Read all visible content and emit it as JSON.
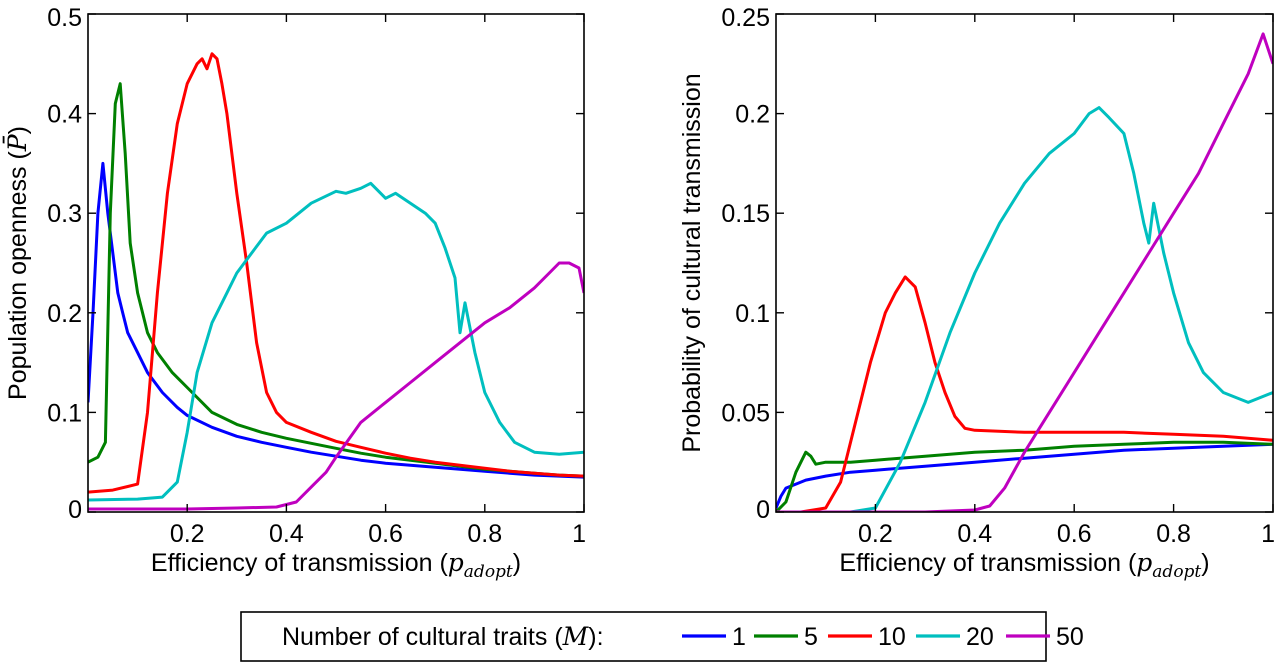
{
  "legend": {
    "title": "Number of cultural traits",
    "title_symbol": "M",
    "placement": "bottom-center",
    "entries": [
      {
        "label": "1",
        "color": "#0000ff"
      },
      {
        "label": "5",
        "color": "#008000"
      },
      {
        "label": "10",
        "color": "#ff0000"
      },
      {
        "label": "20",
        "color": "#00bfbf"
      },
      {
        "label": "50",
        "color": "#bf00bf"
      }
    ]
  },
  "chart_data": [
    {
      "type": "line",
      "xlabel": "Efficiency of transmission",
      "xlabel_symbol": "p",
      "xlabel_subscript": "adopt",
      "ylabel": "Population openness",
      "ylabel_symbol": "P̄",
      "xlim": [
        0,
        1
      ],
      "ylim": [
        0,
        0.5
      ],
      "xticks": [
        "0.2",
        "0.4",
        "0.6",
        "0.8",
        "1"
      ],
      "yticks": [
        "0",
        "0.1",
        "0.2",
        "0.3",
        "0.4",
        "0.5"
      ],
      "xtick_values": [
        0.2,
        0.4,
        0.6,
        0.8,
        1.0
      ],
      "ytick_values": [
        0,
        0.1,
        0.2,
        0.3,
        0.4,
        0.5
      ],
      "grid": false,
      "series": [
        {
          "name": "1",
          "color": "#0000ff",
          "x": [
            0.0,
            0.01,
            0.02,
            0.03,
            0.04,
            0.05,
            0.06,
            0.07,
            0.08,
            0.1,
            0.12,
            0.15,
            0.18,
            0.2,
            0.25,
            0.3,
            0.35,
            0.4,
            0.45,
            0.5,
            0.55,
            0.6,
            0.65,
            0.7,
            0.75,
            0.8,
            0.85,
            0.9,
            0.95,
            1.0
          ],
          "y": [
            0.11,
            0.2,
            0.3,
            0.35,
            0.3,
            0.26,
            0.22,
            0.2,
            0.18,
            0.16,
            0.14,
            0.12,
            0.105,
            0.097,
            0.085,
            0.076,
            0.07,
            0.065,
            0.06,
            0.056,
            0.052,
            0.049,
            0.047,
            0.045,
            0.043,
            0.041,
            0.039,
            0.037,
            0.036,
            0.035
          ]
        },
        {
          "name": "5",
          "color": "#008000",
          "x": [
            0.0,
            0.02,
            0.035,
            0.045,
            0.055,
            0.065,
            0.075,
            0.085,
            0.1,
            0.12,
            0.14,
            0.17,
            0.2,
            0.25,
            0.3,
            0.35,
            0.4,
            0.45,
            0.5,
            0.55,
            0.6,
            0.65,
            0.7,
            0.75,
            0.8,
            0.85,
            0.9,
            0.95,
            1.0
          ],
          "y": [
            0.05,
            0.055,
            0.07,
            0.3,
            0.41,
            0.43,
            0.36,
            0.27,
            0.22,
            0.18,
            0.16,
            0.14,
            0.125,
            0.1,
            0.088,
            0.08,
            0.074,
            0.069,
            0.064,
            0.059,
            0.055,
            0.052,
            0.049,
            0.046,
            0.043,
            0.041,
            0.039,
            0.037,
            0.036
          ]
        },
        {
          "name": "10",
          "color": "#ff0000",
          "x": [
            0.0,
            0.05,
            0.1,
            0.12,
            0.14,
            0.16,
            0.18,
            0.2,
            0.22,
            0.23,
            0.24,
            0.25,
            0.26,
            0.27,
            0.28,
            0.3,
            0.32,
            0.34,
            0.36,
            0.38,
            0.4,
            0.45,
            0.5,
            0.55,
            0.6,
            0.65,
            0.7,
            0.75,
            0.8,
            0.85,
            0.9,
            0.95,
            1.0
          ],
          "y": [
            0.02,
            0.022,
            0.028,
            0.1,
            0.22,
            0.32,
            0.39,
            0.43,
            0.45,
            0.455,
            0.445,
            0.46,
            0.455,
            0.43,
            0.4,
            0.32,
            0.25,
            0.17,
            0.12,
            0.1,
            0.09,
            0.08,
            0.071,
            0.065,
            0.059,
            0.054,
            0.05,
            0.047,
            0.044,
            0.041,
            0.039,
            0.037,
            0.036
          ]
        },
        {
          "name": "20",
          "color": "#00bfbf",
          "x": [
            0.0,
            0.1,
            0.15,
            0.18,
            0.2,
            0.22,
            0.25,
            0.28,
            0.3,
            0.33,
            0.36,
            0.4,
            0.45,
            0.5,
            0.52,
            0.55,
            0.57,
            0.6,
            0.62,
            0.65,
            0.68,
            0.7,
            0.72,
            0.74,
            0.75,
            0.76,
            0.78,
            0.8,
            0.83,
            0.86,
            0.9,
            0.95,
            1.0
          ],
          "y": [
            0.012,
            0.013,
            0.015,
            0.03,
            0.08,
            0.14,
            0.19,
            0.22,
            0.24,
            0.26,
            0.28,
            0.29,
            0.31,
            0.322,
            0.32,
            0.325,
            0.33,
            0.315,
            0.32,
            0.31,
            0.3,
            0.29,
            0.265,
            0.235,
            0.18,
            0.21,
            0.16,
            0.12,
            0.09,
            0.07,
            0.06,
            0.058,
            0.06
          ]
        },
        {
          "name": "50",
          "color": "#bf00bf",
          "x": [
            0.0,
            0.2,
            0.3,
            0.38,
            0.42,
            0.45,
            0.48,
            0.5,
            0.55,
            0.6,
            0.65,
            0.7,
            0.75,
            0.8,
            0.85,
            0.9,
            0.93,
            0.95,
            0.97,
            0.99,
            1.0
          ],
          "y": [
            0.003,
            0.003,
            0.004,
            0.005,
            0.01,
            0.025,
            0.04,
            0.055,
            0.09,
            0.11,
            0.13,
            0.15,
            0.17,
            0.19,
            0.205,
            0.225,
            0.24,
            0.25,
            0.25,
            0.245,
            0.22
          ]
        }
      ]
    },
    {
      "type": "line",
      "xlabel": "Efficiency of transmission",
      "xlabel_symbol": "p",
      "xlabel_subscript": "adopt",
      "ylabel": "Probability of cultural transmission",
      "xlim": [
        0,
        1
      ],
      "ylim": [
        0,
        0.25
      ],
      "xticks": [
        "0.2",
        "0.4",
        "0.6",
        "0.8",
        "1"
      ],
      "yticks": [
        "0",
        "0.05",
        "0.1",
        "0.15",
        "0.2",
        "0.25"
      ],
      "xtick_values": [
        0.2,
        0.4,
        0.6,
        0.8,
        1.0
      ],
      "ytick_values": [
        0,
        0.05,
        0.1,
        0.15,
        0.2,
        0.25
      ],
      "grid": false,
      "series": [
        {
          "name": "1",
          "color": "#0000ff",
          "x": [
            0.0,
            0.01,
            0.02,
            0.04,
            0.06,
            0.1,
            0.15,
            0.2,
            0.3,
            0.4,
            0.5,
            0.6,
            0.7,
            0.8,
            0.9,
            1.0
          ],
          "y": [
            0.002,
            0.008,
            0.012,
            0.014,
            0.016,
            0.018,
            0.02,
            0.021,
            0.023,
            0.025,
            0.027,
            0.029,
            0.031,
            0.032,
            0.033,
            0.034
          ]
        },
        {
          "name": "5",
          "color": "#008000",
          "x": [
            0.0,
            0.02,
            0.04,
            0.06,
            0.07,
            0.08,
            0.1,
            0.15,
            0.2,
            0.3,
            0.4,
            0.5,
            0.6,
            0.7,
            0.8,
            0.9,
            1.0
          ],
          "y": [
            0.0,
            0.005,
            0.02,
            0.03,
            0.028,
            0.024,
            0.025,
            0.025,
            0.026,
            0.028,
            0.03,
            0.031,
            0.033,
            0.034,
            0.035,
            0.035,
            0.034
          ]
        },
        {
          "name": "10",
          "color": "#ff0000",
          "x": [
            0.0,
            0.05,
            0.1,
            0.13,
            0.16,
            0.19,
            0.22,
            0.24,
            0.26,
            0.28,
            0.3,
            0.32,
            0.34,
            0.36,
            0.38,
            0.4,
            0.5,
            0.6,
            0.7,
            0.8,
            0.9,
            1.0
          ],
          "y": [
            0.0,
            0.0,
            0.002,
            0.015,
            0.045,
            0.075,
            0.1,
            0.11,
            0.118,
            0.113,
            0.095,
            0.075,
            0.06,
            0.048,
            0.042,
            0.041,
            0.04,
            0.04,
            0.04,
            0.039,
            0.038,
            0.036
          ]
        },
        {
          "name": "20",
          "color": "#00bfbf",
          "x": [
            0.0,
            0.15,
            0.2,
            0.25,
            0.3,
            0.35,
            0.4,
            0.45,
            0.5,
            0.55,
            0.6,
            0.63,
            0.65,
            0.67,
            0.7,
            0.72,
            0.74,
            0.75,
            0.76,
            0.78,
            0.8,
            0.83,
            0.86,
            0.9,
            0.95,
            1.0
          ],
          "y": [
            0.0,
            0.0,
            0.002,
            0.025,
            0.055,
            0.09,
            0.12,
            0.145,
            0.165,
            0.18,
            0.19,
            0.2,
            0.203,
            0.198,
            0.19,
            0.17,
            0.145,
            0.135,
            0.155,
            0.13,
            0.11,
            0.085,
            0.07,
            0.06,
            0.055,
            0.06
          ]
        },
        {
          "name": "50",
          "color": "#bf00bf",
          "x": [
            0.0,
            0.3,
            0.4,
            0.43,
            0.46,
            0.5,
            0.55,
            0.6,
            0.65,
            0.7,
            0.75,
            0.8,
            0.85,
            0.9,
            0.95,
            0.98,
            1.0
          ],
          "y": [
            0.0,
            0.0,
            0.001,
            0.003,
            0.012,
            0.03,
            0.05,
            0.07,
            0.09,
            0.11,
            0.13,
            0.15,
            0.17,
            0.195,
            0.22,
            0.24,
            0.225
          ]
        }
      ]
    }
  ]
}
